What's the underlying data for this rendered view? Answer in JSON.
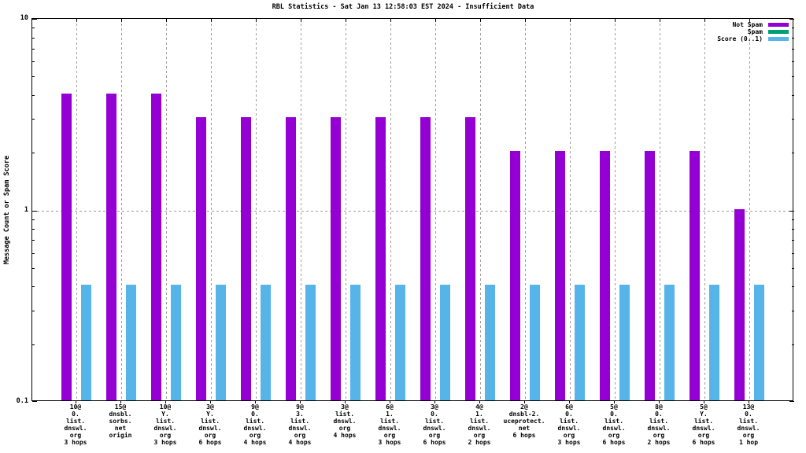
{
  "title": "RBL Statistics - Sat Jan 13 12:58:03 EST 2024 - Insufficient Data",
  "y_axis": {
    "label": "Message Count or Spam Score",
    "scale": "log",
    "ticks": [
      {
        "value": 10,
        "label": "10"
      },
      {
        "value": 1,
        "label": "1"
      },
      {
        "value": 0.1,
        "label": "0.1"
      }
    ]
  },
  "colors": {
    "not_spam": "#9400d3",
    "spam": "#009e73",
    "score": "#56b4e9",
    "grid": "#9e9e9e",
    "axis": "#000000",
    "background": "#ffffff"
  },
  "chart_data": {
    "type": "bar",
    "title": "RBL Statistics - Sat Jan 13 12:58:03 EST 2024 - Insufficient Data",
    "xlabel": "",
    "ylabel": "Message Count or Spam Score",
    "yscale": "log",
    "ylim": [
      0.1,
      10
    ],
    "grid": true,
    "legend_position": "top-right",
    "categories": [
      [
        "10@",
        "0.",
        "list.",
        "dnswl.",
        "org",
        "3 hops"
      ],
      [
        "15@",
        "dnsbl.",
        "sorbs.",
        "net",
        "origin"
      ],
      [
        "10@",
        "Y.",
        "list.",
        "dnswl.",
        "org",
        "3 hops"
      ],
      [
        "3@",
        "Y.",
        "list.",
        "dnswl.",
        "org",
        "6 hops"
      ],
      [
        "9@",
        "0.",
        "list.",
        "dnswl.",
        "org",
        "4 hops"
      ],
      [
        "9@",
        "3.",
        "list.",
        "dnswl.",
        "org",
        "4 hops"
      ],
      [
        "3@",
        "list.",
        "dnswl.",
        "org",
        "4 hops"
      ],
      [
        "6@",
        "1.",
        "list.",
        "dnswl.",
        "org",
        "3 hops"
      ],
      [
        "3@",
        "0.",
        "list.",
        "dnswl.",
        "org",
        "6 hops"
      ],
      [
        "4@",
        "1.",
        "list.",
        "dnswl.",
        "org",
        "2 hops"
      ],
      [
        "2@",
        "dnsbl-2.",
        "uceprotect.",
        "net",
        "6 hops"
      ],
      [
        "6@",
        "0.",
        "list.",
        "dnswl.",
        "org",
        "3 hops"
      ],
      [
        "5@",
        "0.",
        "list.",
        "dnswl.",
        "org",
        "6 hops"
      ],
      [
        "8@",
        "0.",
        "list.",
        "dnswl.",
        "org",
        "2 hops"
      ],
      [
        "5@",
        "Y.",
        "list.",
        "dnswl.",
        "org",
        "6 hops"
      ],
      [
        "13@",
        "0.",
        "list.",
        "dnswl.",
        "org",
        "1 hop"
      ]
    ],
    "series": [
      {
        "name": "Not Spam",
        "color": "#9400d3",
        "values": [
          4,
          4,
          4,
          3,
          3,
          3,
          3,
          3,
          3,
          3,
          2,
          2,
          2,
          2,
          2,
          1
        ]
      },
      {
        "name": "Spam",
        "color": "#009e73",
        "values": [
          0,
          0,
          0,
          0,
          0,
          0,
          0,
          0,
          0,
          0,
          0,
          0,
          0,
          0,
          0,
          0
        ]
      },
      {
        "name": "Score (0..1)",
        "color": "#56b4e9",
        "values": [
          0.4,
          0.4,
          0.4,
          0.4,
          0.4,
          0.4,
          0.4,
          0.4,
          0.4,
          0.4,
          0.4,
          0.4,
          0.4,
          0.4,
          0.4,
          0.4
        ]
      }
    ]
  }
}
